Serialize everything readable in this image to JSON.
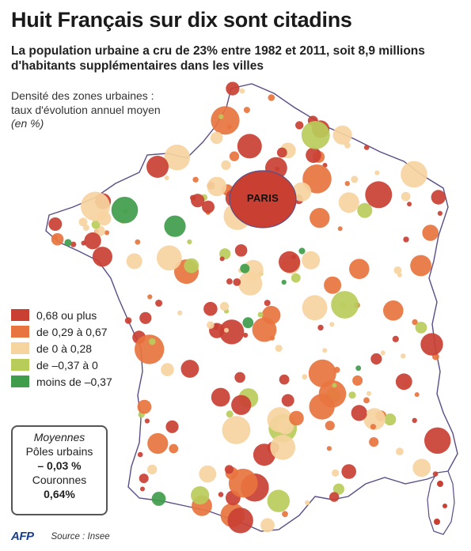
{
  "title": "Huit Français sur dix sont citadins",
  "subtitle": "La population urbaine a cru de 23% entre 1982 et 2011, soit 8,9 millions d'habitants supplémentaires dans les villes",
  "legend": {
    "title_line1": "Densité des zones urbaines :",
    "title_line2": "taux d'évolution annuel moyen",
    "unit": "(en %)",
    "items": [
      {
        "label": "0,68 ou plus",
        "color": "#c94033"
      },
      {
        "label": "de 0,29 à 0,67",
        "color": "#e8743f"
      },
      {
        "label": "de 0 à 0,28",
        "color": "#f6d4a0"
      },
      {
        "label": "de –0,37 à 0",
        "color": "#b8cc5a"
      },
      {
        "label": "moins de –0,37",
        "color": "#3f9d4b"
      }
    ]
  },
  "averages": {
    "title": "Moyennes",
    "poles_label": "Pôles urbains",
    "poles_value": "– 0,03 %",
    "couronnes_label": "Couronnes",
    "couronnes_value": "0,64%"
  },
  "map": {
    "city_label": "PARIS",
    "border_color": "#5a4c86",
    "background_fill": "#ffffff"
  },
  "footer": {
    "logo": "AFP",
    "source": "Source : Insee"
  }
}
